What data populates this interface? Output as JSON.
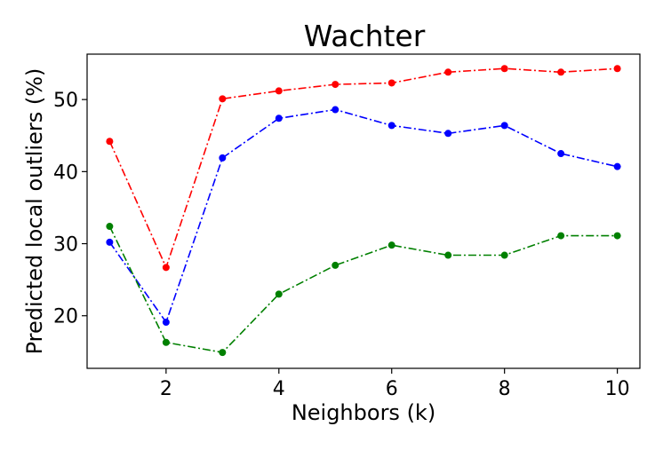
{
  "chart_data": {
    "type": "line",
    "title": "Wachter",
    "xlabel": "Neighbors (k)",
    "ylabel": "Predicted local outliers (%)",
    "xlim": [
      0.6,
      10.4
    ],
    "ylim": [
      12.7,
      56.3
    ],
    "xticks": [
      2,
      4,
      6,
      8,
      10
    ],
    "yticks": [
      20,
      30,
      40,
      50
    ],
    "grid": false,
    "x": [
      1,
      2,
      3,
      4,
      5,
      6,
      7,
      8,
      9,
      10
    ],
    "series": [
      {
        "color": "#ff0000",
        "linestyle": "dashdot",
        "values": [
          44.2,
          26.7,
          50.1,
          51.2,
          52.1,
          52.3,
          53.8,
          54.3,
          53.8,
          54.3
        ]
      },
      {
        "color": "#0000ff",
        "linestyle": "dashdot",
        "values": [
          30.2,
          19.1,
          41.9,
          47.4,
          48.6,
          46.4,
          45.3,
          46.4,
          42.5,
          40.7
        ]
      },
      {
        "color": "#008000",
        "linestyle": "dashdot",
        "values": [
          32.4,
          16.3,
          14.9,
          23.0,
          27.0,
          29.8,
          28.4,
          28.4,
          31.1,
          31.1
        ]
      }
    ]
  }
}
